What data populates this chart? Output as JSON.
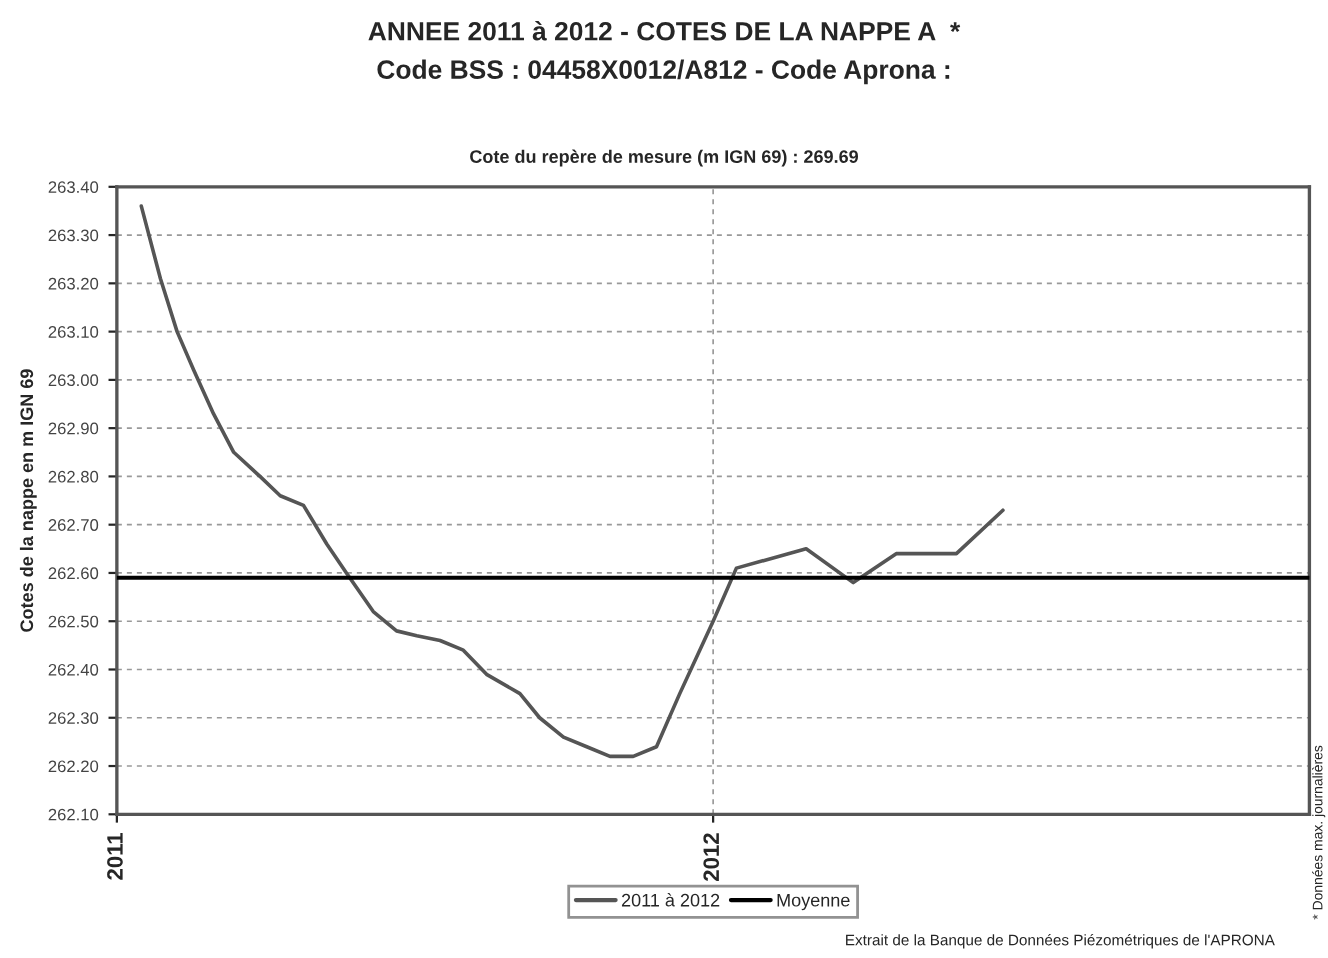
{
  "chart_data": {
    "type": "line",
    "title": "ANNEE 2011 à 2012 - COTES DE LA NAPPE A  *",
    "subtitle": "Code BSS : 04458X0012/A812 - Code Aprona :",
    "ylabel": "Cotes de la nappe en m IGN 69",
    "annotations": [
      "Cote du repère de mesure (m IGN 69) : 269.69",
      "* Données max. journalières",
      "Extrait de la Banque de Données Piézométriques de l'APRONA"
    ],
    "x": [
      2011.041,
      2011.073,
      2011.101,
      2011.129,
      2011.162,
      2011.196,
      2011.24,
      2011.274,
      2011.313,
      2011.352,
      2011.385,
      2011.43,
      2011.469,
      2011.503,
      2011.542,
      2011.581,
      2011.62,
      2011.676,
      2011.709,
      2011.749,
      2011.788,
      2011.827,
      2011.866,
      2011.905,
      2011.944,
      2012.0,
      2012.039,
      2012.156,
      2012.235,
      2012.307,
      2012.408,
      2012.486
    ],
    "series": [
      {
        "name": "2011 à 2012",
        "color": "#555555",
        "values": [
          263.36,
          263.21,
          263.1,
          263.02,
          262.93,
          262.85,
          262.8,
          262.76,
          262.74,
          262.66,
          262.6,
          262.52,
          262.48,
          262.47,
          262.46,
          262.44,
          262.39,
          262.35,
          262.3,
          262.26,
          262.24,
          262.22,
          262.22,
          262.24,
          262.35,
          262.5,
          262.61,
          262.65,
          262.58,
          262.64,
          262.64,
          262.73
        ]
      }
    ],
    "ref_lines": [
      {
        "axis": "y",
        "value": 262.59,
        "label": "Moyenne",
        "color": "#000000",
        "line_style": "solid"
      }
    ],
    "xlim": [
      2011,
      2013
    ],
    "xticks": [
      2011,
      2012
    ],
    "ylim": [
      262.1,
      263.4
    ],
    "yticks": [
      {
        "value": 262.1,
        "label": "262.10"
      },
      {
        "value": 262.2,
        "label": "262.20"
      },
      {
        "value": 262.3,
        "label": "262.30"
      },
      {
        "value": 262.4,
        "label": "262.40"
      },
      {
        "value": 262.5,
        "label": "262.50"
      },
      {
        "value": 262.6,
        "label": "262.60"
      },
      {
        "value": 262.7,
        "label": "262.70"
      },
      {
        "value": 262.8,
        "label": "262.80"
      },
      {
        "value": 262.9,
        "label": "262.90"
      },
      {
        "value": 263.0,
        "label": "263.00"
      },
      {
        "value": 263.1,
        "label": "263.10"
      },
      {
        "value": 263.2,
        "label": "263.20"
      },
      {
        "value": 263.3,
        "label": "263.30"
      },
      {
        "value": 263.4,
        "label": "263.40"
      }
    ],
    "grid": true,
    "legend": "bottom",
    "line_style": "solid",
    "marker": "none"
  }
}
